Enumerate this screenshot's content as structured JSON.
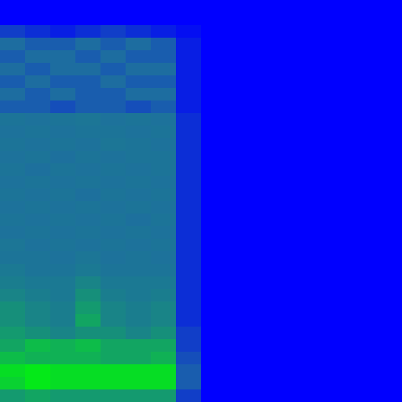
{
  "chart_data": {
    "type": "heatmap",
    "tick_labels": false,
    "value_range": [
      0,
      1
    ],
    "cells": [
      [
        0,
        0,
        0,
        0,
        0,
        0,
        0,
        0,
        0,
        0,
        0,
        0,
        0,
        0,
        0,
        0
      ],
      [
        0,
        0,
        0,
        0,
        0,
        0,
        0,
        0,
        0,
        0,
        0,
        0,
        0,
        0,
        0,
        0
      ],
      [
        0.2,
        0.15,
        0.1,
        0.15,
        0.2,
        0.15,
        0.1,
        0.05,
        0,
        0,
        0,
        0,
        0,
        0,
        0,
        0
      ],
      [
        0.35,
        0.3,
        0.3,
        0.35,
        0.3,
        0.35,
        0.3,
        0.1,
        0,
        0,
        0,
        0,
        0,
        0,
        0,
        0
      ],
      [
        0.3,
        0.35,
        0.35,
        0.3,
        0.35,
        0.3,
        0.3,
        0.1,
        0,
        0,
        0,
        0,
        0,
        0,
        0,
        0
      ],
      [
        0.35,
        0.3,
        0.35,
        0.35,
        0.3,
        0.35,
        0.35,
        0.1,
        0,
        0,
        0,
        0,
        0,
        0,
        0,
        0
      ],
      [
        0.3,
        0.35,
        0.3,
        0.3,
        0.35,
        0.3,
        0.3,
        0.1,
        0,
        0,
        0,
        0,
        0,
        0,
        0,
        0
      ],
      [
        0.35,
        0.3,
        0.35,
        0.3,
        0.3,
        0.35,
        0.35,
        0.1,
        0,
        0,
        0,
        0,
        0,
        0,
        0,
        0
      ],
      [
        0.3,
        0.3,
        0.25,
        0.3,
        0.3,
        0.25,
        0.3,
        0.1,
        0,
        0,
        0,
        0,
        0,
        0,
        0,
        0
      ],
      [
        0.38,
        0.37,
        0.38,
        0.39,
        0.37,
        0.38,
        0.37,
        0.15,
        0,
        0,
        0,
        0,
        0,
        0,
        0,
        0
      ],
      [
        0.37,
        0.38,
        0.37,
        0.38,
        0.38,
        0.37,
        0.38,
        0.15,
        0,
        0,
        0,
        0,
        0,
        0,
        0,
        0
      ],
      [
        0.38,
        0.37,
        0.38,
        0.37,
        0.39,
        0.38,
        0.37,
        0.15,
        0,
        0,
        0,
        0,
        0,
        0,
        0,
        0
      ],
      [
        0.37,
        0.38,
        0.36,
        0.38,
        0.37,
        0.38,
        0.38,
        0.15,
        0,
        0,
        0,
        0,
        0,
        0,
        0,
        0
      ],
      [
        0.38,
        0.36,
        0.38,
        0.37,
        0.38,
        0.37,
        0.38,
        0.15,
        0,
        0,
        0,
        0,
        0,
        0,
        0,
        0
      ],
      [
        0.37,
        0.38,
        0.37,
        0.38,
        0.37,
        0.38,
        0.37,
        0.15,
        0,
        0,
        0,
        0,
        0,
        0,
        0,
        0
      ],
      [
        0.38,
        0.37,
        0.38,
        0.36,
        0.38,
        0.37,
        0.38,
        0.15,
        0,
        0,
        0,
        0,
        0,
        0,
        0,
        0
      ],
      [
        0.37,
        0.38,
        0.37,
        0.38,
        0.37,
        0.38,
        0.37,
        0.15,
        0,
        0,
        0,
        0,
        0,
        0,
        0,
        0
      ],
      [
        0.38,
        0.37,
        0.38,
        0.37,
        0.38,
        0.36,
        0.38,
        0.15,
        0,
        0,
        0,
        0,
        0,
        0,
        0,
        0
      ],
      [
        0.37,
        0.38,
        0.37,
        0.38,
        0.37,
        0.38,
        0.37,
        0.15,
        0,
        0,
        0,
        0,
        0,
        0,
        0,
        0
      ],
      [
        0.39,
        0.37,
        0.38,
        0.37,
        0.38,
        0.37,
        0.38,
        0.15,
        0,
        0,
        0,
        0,
        0,
        0,
        0,
        0
      ],
      [
        0.38,
        0.38,
        0.37,
        0.39,
        0.37,
        0.38,
        0.37,
        0.15,
        0,
        0,
        0,
        0,
        0,
        0,
        0,
        0
      ],
      [
        0.4,
        0.38,
        0.38,
        0.4,
        0.38,
        0.38,
        0.38,
        0.15,
        0,
        0,
        0,
        0,
        0,
        0,
        0,
        0
      ],
      [
        0.42,
        0.4,
        0.4,
        0.45,
        0.4,
        0.4,
        0.4,
        0.15,
        0,
        0,
        0,
        0,
        0,
        0,
        0,
        0
      ],
      [
        0.45,
        0.42,
        0.4,
        0.5,
        0.42,
        0.4,
        0.42,
        0.15,
        0,
        0,
        0,
        0,
        0,
        0,
        0,
        0
      ],
      [
        0.5,
        0.45,
        0.42,
        0.55,
        0.45,
        0.42,
        0.45,
        0.15,
        0,
        0,
        0,
        0,
        0,
        0,
        0,
        0
      ],
      [
        0.5,
        0.45,
        0.42,
        0.6,
        0.45,
        0.42,
        0.45,
        0.15,
        0,
        0,
        0,
        0,
        0,
        0,
        0,
        0
      ],
      [
        0.55,
        0.5,
        0.45,
        0.5,
        0.5,
        0.45,
        0.5,
        0.2,
        0,
        0,
        0,
        0,
        0,
        0,
        0,
        0
      ],
      [
        0.6,
        0.7,
        0.65,
        0.7,
        0.6,
        0.6,
        0.6,
        0.2,
        0,
        0,
        0,
        0,
        0,
        0,
        0,
        0
      ],
      [
        0.7,
        0.65,
        0.65,
        0.65,
        0.6,
        0.6,
        0.65,
        0.25,
        0,
        0,
        0,
        0,
        0,
        0,
        0,
        0
      ],
      [
        0.85,
        0.9,
        0.85,
        0.85,
        0.85,
        0.85,
        0.85,
        0.3,
        0,
        0,
        0,
        0,
        0,
        0,
        0,
        0
      ],
      [
        0.8,
        0.9,
        0.85,
        0.85,
        0.85,
        0.85,
        0.85,
        0.3,
        0,
        0,
        0,
        0,
        0,
        0,
        0,
        0
      ],
      [
        0.55,
        0.6,
        0.55,
        0.55,
        0.55,
        0.55,
        0.55,
        0.2,
        0,
        0,
        0,
        0,
        0,
        0,
        0,
        0
      ]
    ]
  }
}
